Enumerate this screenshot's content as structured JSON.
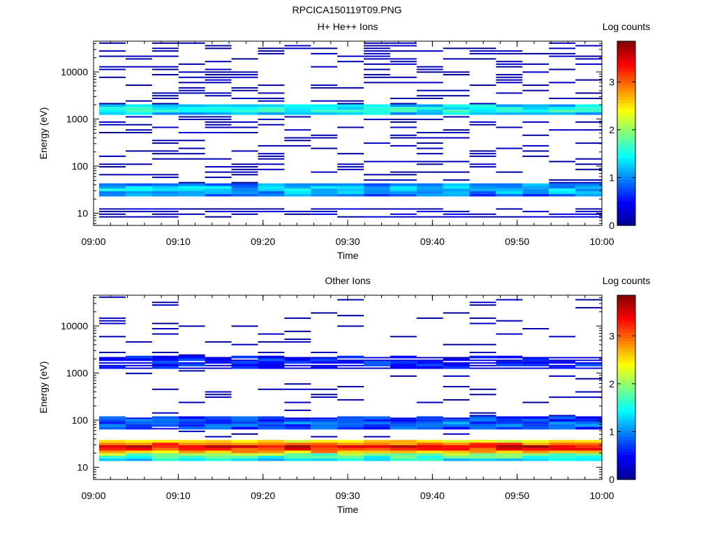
{
  "figure_title": "RPCICA150119T09.PNG",
  "colorscale": [
    "#00008f",
    "#0000ff",
    "#007fff",
    "#00ffff",
    "#7fff7f",
    "#ffff00",
    "#ff7f00",
    "#ff0000",
    "#7f0000"
  ],
  "chart_data": [
    {
      "type": "heatmap",
      "title": "H+ He++ Ions",
      "xlabel": "Time",
      "ylabel": "Energy (eV)",
      "x_ticks": [
        "09:00",
        "09:10",
        "09:20",
        "09:30",
        "09:40",
        "09:50",
        "10:00"
      ],
      "y_ticks": [
        "10",
        "100",
        "1000",
        "10000"
      ],
      "y_scale": "log",
      "ylim": [
        5.5,
        45000
      ],
      "xlim": [
        "09:00",
        "10:00"
      ],
      "colorbar": {
        "label": "Log counts",
        "ticks": [
          "0",
          "1",
          "2",
          "3"
        ],
        "range": [
          0,
          3.85
        ]
      },
      "time_bins": 19,
      "band_summary": [
        {
          "energy_eV": 30,
          "log_counts": 1.3
        },
        {
          "energy_eV": 1500,
          "log_counts": 1.6
        },
        {
          "energy_eV": 10,
          "log_counts": 0.1
        }
      ]
    },
    {
      "type": "heatmap",
      "title": "Other Ions",
      "xlabel": "Time",
      "ylabel": "Energy (eV)",
      "x_ticks": [
        "09:00",
        "09:10",
        "09:20",
        "09:30",
        "09:40",
        "09:50",
        "10:00"
      ],
      "y_ticks": [
        "10",
        "100",
        "1000",
        "10000"
      ],
      "y_scale": "log",
      "ylim": [
        5.5,
        45000
      ],
      "xlim": [
        "09:00",
        "10:00"
      ],
      "colorbar": {
        "label": "Log counts",
        "ticks": [
          "0",
          "1",
          "2",
          "3"
        ],
        "range": [
          0,
          3.85
        ]
      },
      "time_bins": 19,
      "band_summary": [
        {
          "energy_eV": 25,
          "log_counts": 3.6
        },
        {
          "energy_eV": 18,
          "log_counts": 2.0
        },
        {
          "energy_eV": 80,
          "log_counts": 0.9
        },
        {
          "energy_eV": 1600,
          "log_counts": 0.6
        }
      ]
    }
  ]
}
